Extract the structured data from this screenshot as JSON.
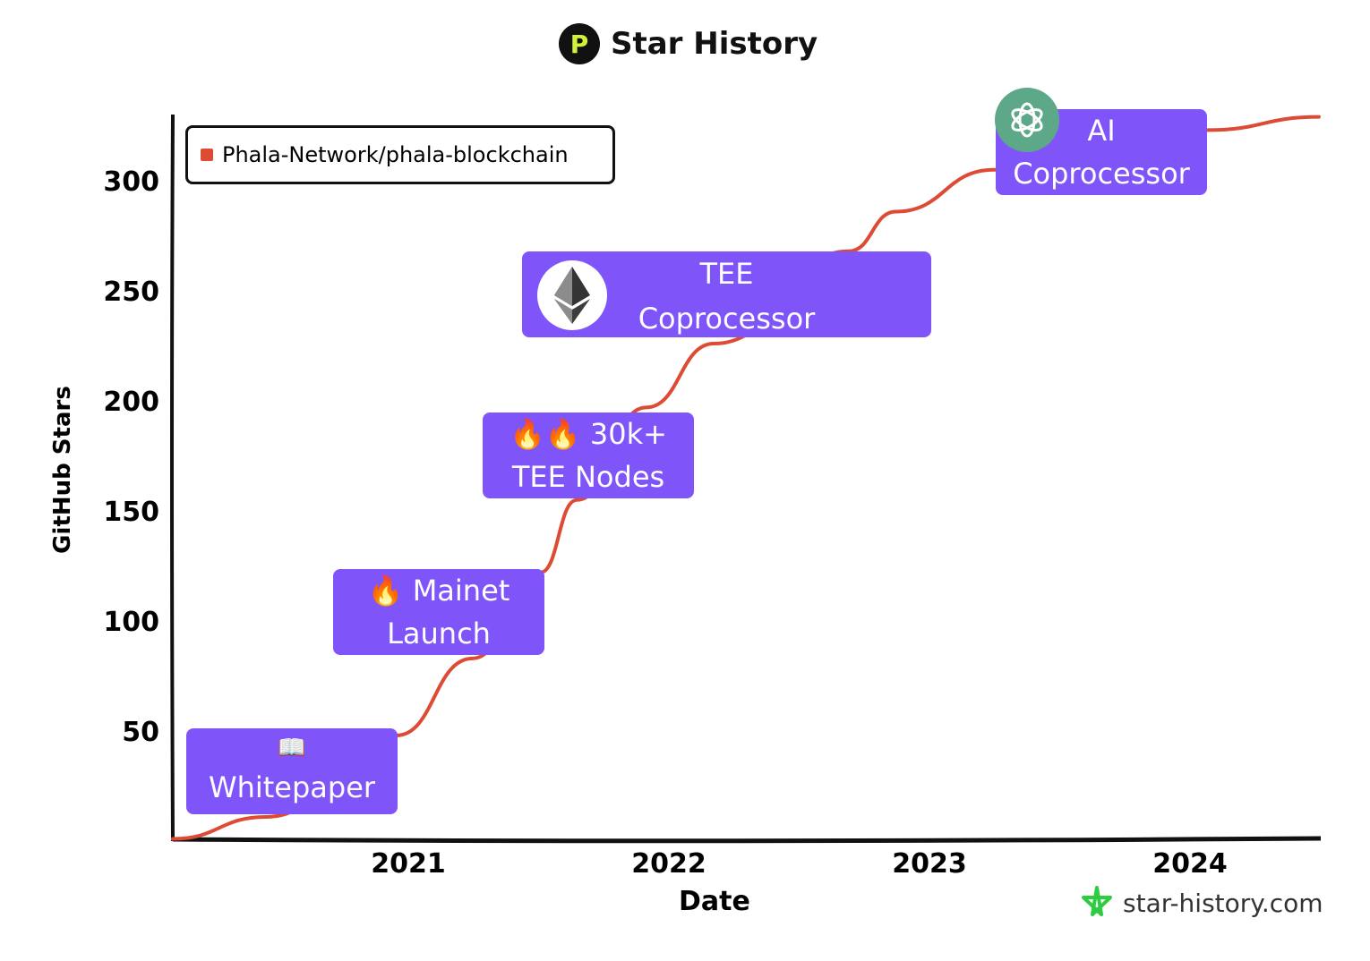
{
  "chart_data": {
    "type": "line",
    "title": "Star History",
    "xlabel": "Date",
    "ylabel": "GitHub Stars",
    "x_ticks": [
      "2021",
      "2022",
      "2023",
      "2024"
    ],
    "y_ticks": [
      50,
      100,
      150,
      200,
      250,
      300
    ],
    "ylim": [
      0,
      330
    ],
    "xlim": [
      "2020-02-01",
      "2024-07-01"
    ],
    "legend_position": "top-left",
    "grid": false,
    "series": [
      {
        "name": "Phala-Network/phala-blockchain",
        "color": "#dd4b34",
        "points": [
          [
            "2020-02-05",
            1
          ],
          [
            "2020-06-15",
            11
          ],
          [
            "2020-12-15",
            48
          ],
          [
            "2021-04-01",
            83
          ],
          [
            "2021-07-05",
            122
          ],
          [
            "2021-08-25",
            155
          ],
          [
            "2021-11-30",
            197
          ],
          [
            "2022-03-05",
            226
          ],
          [
            "2022-09-10",
            268
          ],
          [
            "2022-11-15",
            286
          ],
          [
            "2023-04-01",
            305
          ],
          [
            "2024-01-25",
            323
          ],
          [
            "2024-06-30",
            329
          ]
        ]
      }
    ]
  },
  "annotations": [
    {
      "lines": [
        "📖",
        "Whitepaper"
      ]
    },
    {
      "lines": [
        "🔥 Mainet",
        "Launch"
      ]
    },
    {
      "lines": [
        "🔥🔥 30k+",
        "TEE Nodes"
      ]
    },
    {
      "lines": [
        "TEE",
        "Coprocessor"
      ]
    },
    {
      "lines": [
        "AI",
        "Coprocessor"
      ]
    }
  ],
  "header": {
    "logo_letter": "P"
  },
  "watermark": "star-history.com"
}
